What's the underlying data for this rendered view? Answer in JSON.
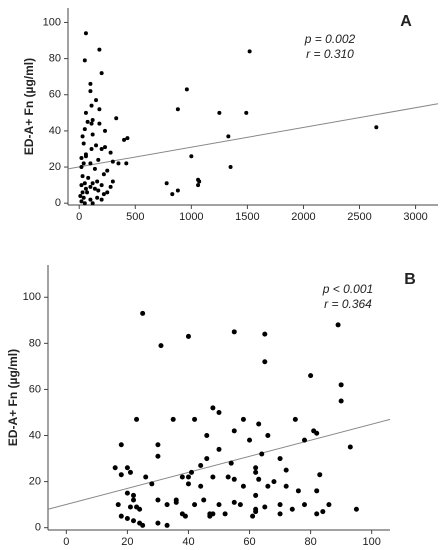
{
  "chart_data": [
    {
      "type": "scatter",
      "annotations": [
        "p = 0.002",
        "r = 0.310"
      ],
      "panel_label": "A",
      "y_label": "ED-A+ Fn (µg/ml)",
      "color": "#000000",
      "line_color": "#888888",
      "xlim": [
        -100,
        3200
      ],
      "ylim": [
        -1,
        108
      ],
      "xticks": [
        0,
        500,
        1000,
        1500,
        2000,
        2500,
        3000
      ],
      "yticks": [
        0,
        20,
        40,
        60,
        80,
        100
      ],
      "x": [
        60,
        180,
        50,
        200,
        100,
        100,
        150,
        110,
        180,
        330,
        75,
        110,
        50,
        120,
        120,
        30,
        40,
        150,
        200,
        110,
        230,
        280,
        60,
        20,
        60,
        40,
        170,
        300,
        350,
        420,
        100,
        20,
        140,
        220,
        250,
        30,
        80,
        160,
        300,
        50,
        120,
        200,
        100,
        20,
        60,
        140,
        170,
        280,
        30,
        70,
        220,
        250,
        10,
        40,
        100,
        160,
        200,
        20,
        50,
        120,
        400,
        60,
        880,
        960,
        1250,
        1520,
        1490,
        1330,
        1000,
        1350,
        780,
        880,
        830,
        1070,
        1060,
        1060,
        2650,
        430,
        180,
        230
      ],
      "values": [
        94,
        85,
        79,
        72,
        66,
        62,
        57,
        54,
        52,
        47,
        45,
        44,
        41,
        46,
        38,
        37,
        33,
        32,
        30,
        30,
        31,
        28,
        27,
        25,
        26,
        22,
        24,
        23,
        22,
        22,
        22,
        20,
        19,
        16,
        18,
        15,
        14,
        12,
        12,
        11,
        11,
        10,
        9,
        10,
        8,
        8,
        7,
        9,
        6,
        6,
        5,
        6,
        4,
        3,
        2,
        3,
        2,
        1,
        0,
        0,
        35,
        50,
        52,
        63,
        50,
        84,
        50,
        37,
        26,
        20,
        11,
        7,
        5,
        12,
        10,
        13,
        42,
        36,
        44,
        40
      ],
      "trend_line": {
        "x": [
          -100,
          3200
        ],
        "y": [
          19,
          55
        ]
      }
    },
    {
      "type": "scatter",
      "annotations": [
        "p < 0.001",
        "r = 0.364"
      ],
      "panel_label": "B",
      "y_label": "ED-A+ Fn (µg/ml)",
      "color": "#000000",
      "line_color": "#888888",
      "xlim": [
        -6,
        106
      ],
      "ylim": [
        -1,
        114
      ],
      "xticks": [
        0,
        20,
        40,
        60,
        80,
        100
      ],
      "yticks": [
        0,
        20,
        40,
        60,
        80,
        100
      ],
      "x": [
        25,
        31,
        40,
        55,
        65,
        89,
        65,
        80,
        90,
        90,
        48,
        50,
        35,
        23,
        42,
        58,
        63,
        75,
        55,
        81,
        82,
        46,
        66,
        60,
        78,
        93,
        18,
        30,
        50,
        64,
        70,
        30,
        46,
        54,
        44,
        16,
        20,
        21,
        18,
        41,
        62,
        62,
        72,
        83,
        26,
        38,
        40,
        48,
        53,
        63,
        55,
        68,
        28,
        40,
        44,
        58,
        66,
        72,
        82,
        20,
        22,
        22,
        30,
        36,
        45,
        55,
        62,
        76,
        36,
        42,
        50,
        57,
        65,
        70,
        78,
        86,
        95,
        17,
        21,
        23,
        24,
        33,
        48,
        52,
        62,
        62,
        74,
        84,
        18,
        20,
        22,
        24,
        30,
        38,
        39,
        47,
        70,
        82,
        25,
        33,
        47,
        61
      ],
      "values": [
        93,
        79,
        83,
        85,
        84,
        88,
        72,
        66,
        62,
        55,
        52,
        50,
        47,
        47,
        47,
        47,
        45,
        47,
        42,
        42,
        41,
        40,
        40,
        38,
        38,
        35,
        36,
        36,
        34,
        32,
        30,
        31,
        30,
        28,
        27,
        26,
        26,
        24,
        23,
        24,
        26,
        24,
        25,
        23,
        22,
        22,
        22,
        22,
        22,
        21,
        21,
        20,
        19,
        19,
        18,
        18,
        18,
        18,
        16,
        15,
        14,
        12,
        12,
        12,
        12,
        11,
        14,
        16,
        11,
        10,
        10,
        10,
        9,
        10,
        10,
        10,
        8,
        10,
        9,
        9,
        8,
        10,
        6,
        6,
        8,
        7,
        8,
        7,
        5,
        4,
        3,
        2,
        2,
        6,
        5,
        6,
        6,
        6,
        1,
        1,
        5,
        5
      ],
      "trend_line": {
        "x": [
          -6,
          106
        ],
        "y": [
          8,
          47
        ]
      }
    }
  ]
}
